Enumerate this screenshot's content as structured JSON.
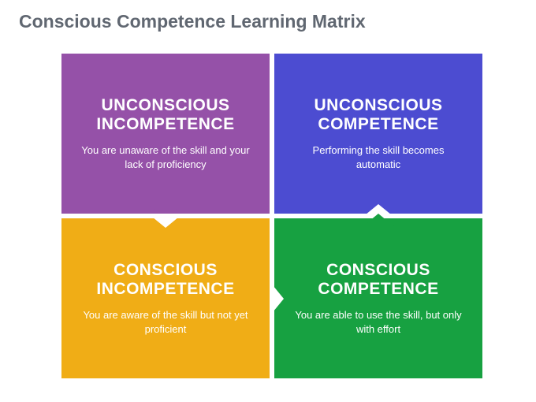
{
  "title": "Conscious Competence Learning Matrix",
  "title_color": "#606771",
  "title_fontsize": 23,
  "background": "#ffffff",
  "matrix": {
    "gap": 6,
    "quadrants": [
      {
        "id": "unconscious-incompetence",
        "heading": "UNCONSCIOUS INCOMPETENCE",
        "desc": "You are unaware of the skill and your lack of proficiency",
        "bg": "#9551a8",
        "arrow": "down"
      },
      {
        "id": "unconscious-competence",
        "heading": "UNCONSCIOUS COMPETENCE",
        "desc": "Performing the skill becomes automatic",
        "bg": "#4c4cd1"
      },
      {
        "id": "conscious-incompetence",
        "heading": "CONSCIOUS INCOMPETENCE",
        "desc": "You are aware of the skill but not yet proficient",
        "bg": "#f0ad16",
        "arrow": "right"
      },
      {
        "id": "conscious-competence",
        "heading": "CONSCIOUS COMPETENCE",
        "desc": "You are able to use the skill, but only with effort",
        "bg": "#17a141",
        "arrow": "up"
      }
    ],
    "heading_fontsize": 21,
    "desc_fontsize": 13,
    "text_color": "#ffffff"
  }
}
